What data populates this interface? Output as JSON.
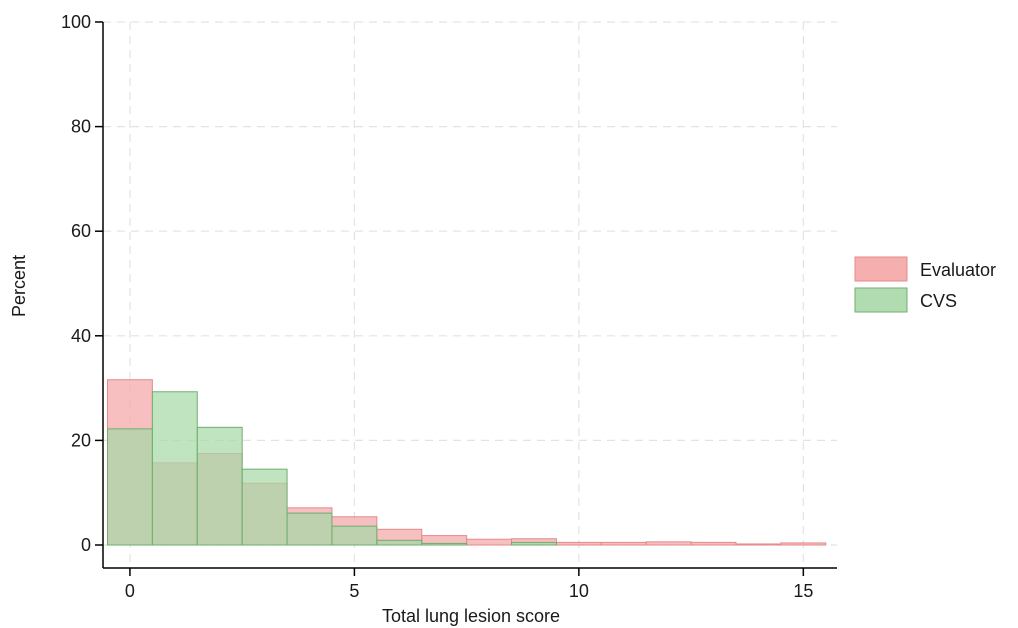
{
  "chart_data": {
    "type": "histogram",
    "xlabel": "Total lung lesion score",
    "ylabel": "Percent",
    "xlim": [
      -0.6,
      15.75
    ],
    "ylim": [
      0,
      100
    ],
    "xticks": [
      0,
      5,
      10,
      15
    ],
    "yticks": [
      0,
      20,
      40,
      60,
      80,
      100
    ],
    "grid": true,
    "legend_position": "right",
    "bins": [
      0,
      1,
      2,
      3,
      4,
      5,
      6,
      7,
      8,
      9,
      10,
      11,
      12,
      13,
      14,
      15
    ],
    "series": [
      {
        "name": "Evaluator",
        "color": "#f4a6a6",
        "values": [
          31.6,
          15.7,
          17.5,
          11.8,
          7.1,
          5.4,
          3.0,
          1.8,
          1.1,
          1.2,
          0.5,
          0.5,
          0.6,
          0.5,
          0.2,
          0.4
        ]
      },
      {
        "name": "CVS",
        "color": "#a8d8a8",
        "values": [
          22.2,
          29.3,
          22.5,
          14.5,
          6.1,
          3.6,
          0.9,
          0.3,
          0.0,
          0.5,
          0.0,
          0.0,
          0.0,
          0.0,
          0.0,
          0.0
        ]
      }
    ]
  }
}
